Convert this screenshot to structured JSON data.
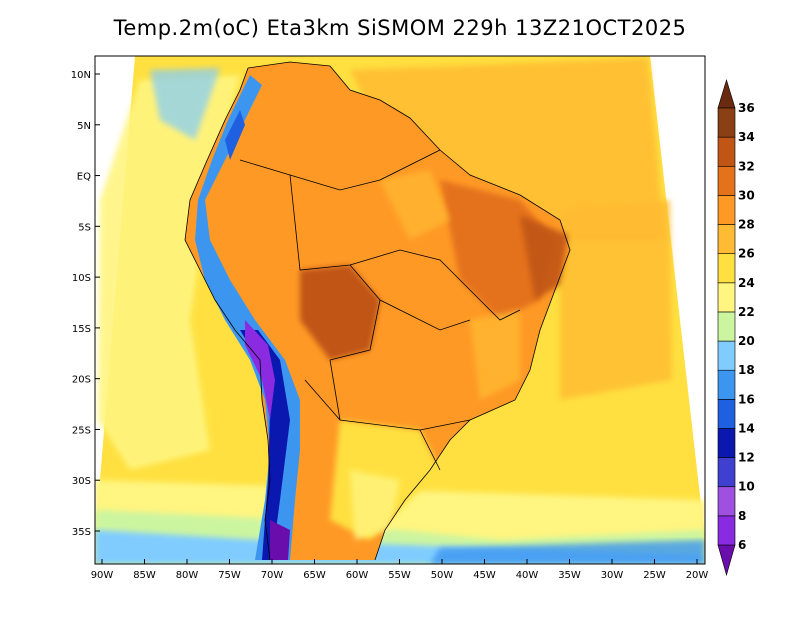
{
  "title": "Temp.2m(oC) Eta3km SiSMOM 229h 13Z21OCT2025",
  "x_ticks": [
    "90W",
    "85W",
    "80W",
    "75W",
    "70W",
    "65W",
    "60W",
    "55W",
    "50W",
    "45W",
    "40W",
    "35W",
    "30W",
    "25W",
    "20W"
  ],
  "y_ticks": [
    "10N",
    "5N",
    "EQ",
    "5S",
    "10S",
    "15S",
    "20S",
    "25S",
    "30S",
    "35S"
  ],
  "colorbar": {
    "labels": [
      "6",
      "8",
      "10",
      "12",
      "14",
      "16",
      "18",
      "20",
      "22",
      "24",
      "26",
      "28",
      "30",
      "32",
      "34",
      "36"
    ],
    "colors": [
      "#6a0dad",
      "#8a2be2",
      "#a050e0",
      "#4040d0",
      "#0a18b0",
      "#1e60e0",
      "#3c96f0",
      "#80ccff",
      "#ccf5a0",
      "#fff580",
      "#ffe040",
      "#ffbb33",
      "#ff9926",
      "#e4721a",
      "#c05516",
      "#8a3f14",
      "#6a2a10"
    ]
  }
}
